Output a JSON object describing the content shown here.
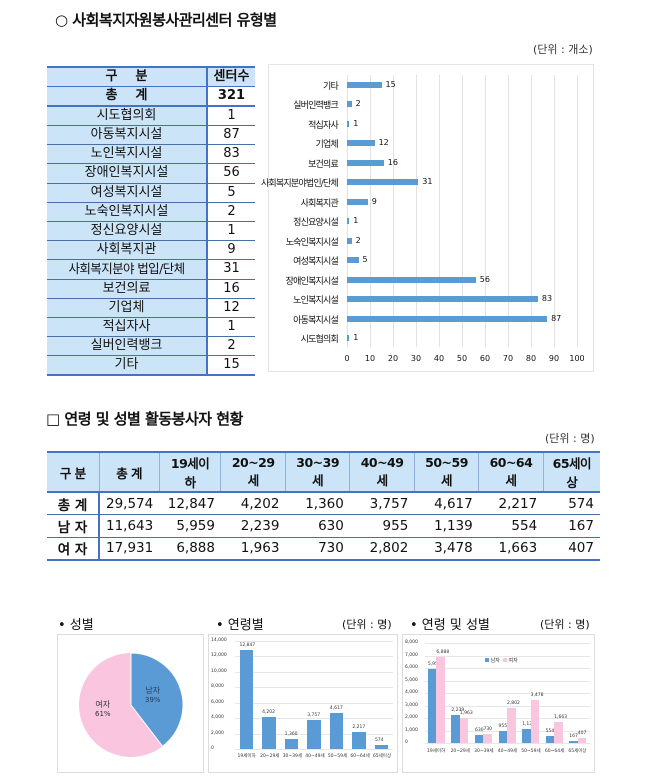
{
  "section1": {
    "title": "○ 사회복지자원봉사관리센터 유형별",
    "unit": "(단위 : 개소)",
    "table": {
      "headers": [
        "구    분",
        "센터수"
      ],
      "total": {
        "label": "총    계",
        "value": "321"
      },
      "rows": [
        {
          "label": "시도협의회",
          "value": "1"
        },
        {
          "label": "아동복지시설",
          "value": "87"
        },
        {
          "label": "노인복지시설",
          "value": "83"
        },
        {
          "label": "장애인복지시설",
          "value": "56"
        },
        {
          "label": "여성복지시설",
          "value": "5"
        },
        {
          "label": "노숙인복지시설",
          "value": "2"
        },
        {
          "label": "정신요양시설",
          "value": "1"
        },
        {
          "label": "사회복지관",
          "value": "9"
        },
        {
          "label": "사회복지분야 법입/단체",
          "value": "31"
        },
        {
          "label": "보건의료",
          "value": "16"
        },
        {
          "label": "기업체",
          "value": "12"
        },
        {
          "label": "적십자사",
          "value": "1"
        },
        {
          "label": "실버인력뱅크",
          "value": "2"
        },
        {
          "label": "기타",
          "value": "15"
        }
      ]
    }
  },
  "section2": {
    "title": "□ 연령 및 성별 활동봉사자 현황",
    "unit": "(단위 : 명)",
    "table": {
      "headers": [
        "구 분",
        "총 계",
        "19세이하",
        "20~29세",
        "30~39세",
        "40~49세",
        "50~59세",
        "60~64세",
        "65세이상"
      ],
      "rows": [
        {
          "label": "총 계",
          "values": [
            "29,574",
            "12,847",
            "4,202",
            "1,360",
            "3,757",
            "4,617",
            "2,217",
            "574"
          ]
        },
        {
          "label": "남 자",
          "values": [
            "11,643",
            "5,959",
            "2,239",
            "630",
            "955",
            "1,139",
            "554",
            "167"
          ]
        },
        {
          "label": "여 자",
          "values": [
            "17,931",
            "6,888",
            "1,963",
            "730",
            "2,802",
            "3,478",
            "1,663",
            "407"
          ]
        }
      ]
    }
  },
  "bottom": {
    "gender_title": "• 성별",
    "age_title": "• 연령별",
    "age_unit": "(단위 : 명)",
    "agegender_title": "• 연령 및 성별",
    "agegender_unit": "(단위 : 명)",
    "pie_labels": {
      "male": "남자",
      "male_pct": "39%",
      "female": "여자",
      "female_pct": "61%"
    },
    "legend": {
      "male": "남자",
      "female": "여자"
    }
  },
  "colors": {
    "blue": "#5b9bd5",
    "pink": "#f9c5df",
    "header_bg": "#cce4f7",
    "border": "#4472c4"
  },
  "chart_data": [
    {
      "type": "bar",
      "orientation": "horizontal",
      "title": "",
      "categories": [
        "기타",
        "실버인력뱅크",
        "적십자사",
        "기업체",
        "보건의료",
        "사회복지분야법인/단체",
        "사회복지관",
        "정신요양시설",
        "노숙인복지시설",
        "여성복지시설",
        "장애인복지시설",
        "노인복지시설",
        "아동복지시설",
        "시도협의회"
      ],
      "values": [
        15,
        2,
        1,
        12,
        16,
        31,
        9,
        1,
        2,
        5,
        56,
        83,
        87,
        1
      ],
      "xlim": [
        0,
        100
      ],
      "xticks": [
        0,
        10,
        20,
        30,
        40,
        50,
        60,
        70,
        80,
        90,
        100
      ],
      "grid": true
    },
    {
      "type": "pie",
      "title": "성별",
      "categories": [
        "남자",
        "여자"
      ],
      "values": [
        39,
        61
      ]
    },
    {
      "type": "bar",
      "title": "연령별",
      "categories": [
        "19세이하",
        "20~29세",
        "30~39세",
        "40~49세",
        "50~59세",
        "60~64세",
        "65세이상"
      ],
      "values": [
        12847,
        4202,
        1360,
        3757,
        4617,
        2217,
        574
      ],
      "labels": [
        "12,847",
        "4,202",
        "1,360",
        "3,757",
        "4,617",
        "2,217",
        "574"
      ],
      "ylim": [
        0,
        14000
      ],
      "yticks": [
        "14,000",
        "12,000",
        "10,000",
        "8,000",
        "6,000",
        "4,000",
        "2,000",
        "0"
      ]
    },
    {
      "type": "bar",
      "title": "연령 및 성별",
      "categories": [
        "19세이하",
        "20~29세",
        "30~39세",
        "40~49세",
        "50~59세",
        "60~64세",
        "65세이상"
      ],
      "series": [
        {
          "name": "남자",
          "values": [
            5959,
            2239,
            630,
            955,
            1139,
            554,
            167
          ]
        },
        {
          "name": "여자",
          "values": [
            6888,
            1963,
            730,
            2802,
            3478,
            1663,
            407
          ]
        }
      ],
      "ylim": [
        0,
        8000
      ],
      "yticks": [
        "8,000",
        "7,000",
        "6,000",
        "5,000",
        "4,000",
        "3,000",
        "2,000",
        "1,000",
        "0"
      ]
    }
  ]
}
